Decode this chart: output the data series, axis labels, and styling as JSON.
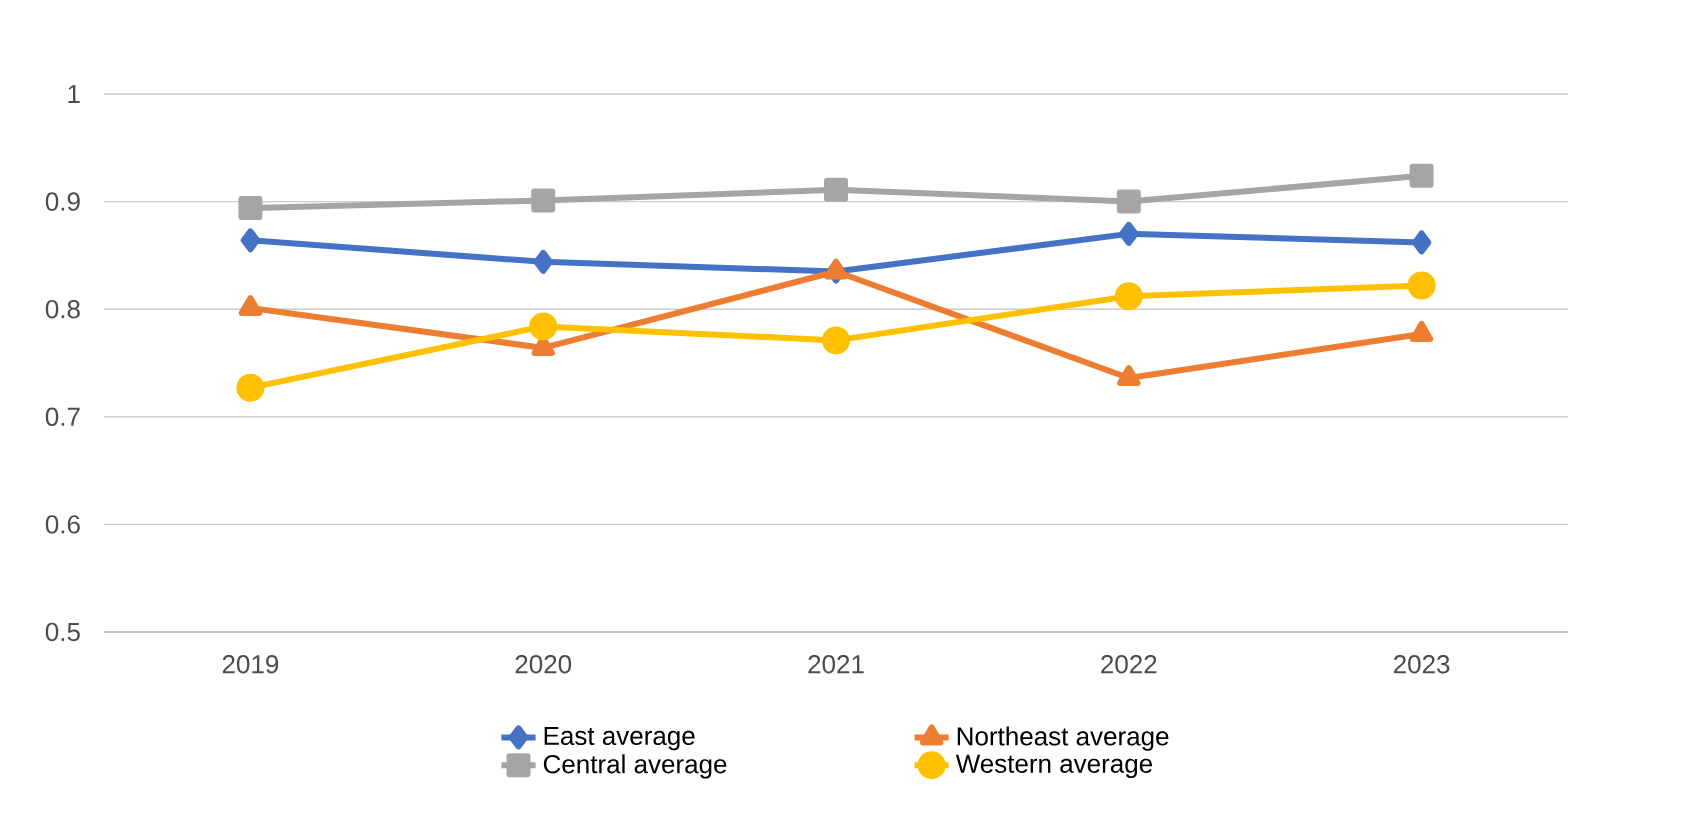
{
  "chart_data": {
    "type": "line",
    "categories": [
      "2019",
      "2020",
      "2021",
      "2022",
      "2023"
    ],
    "series": [
      {
        "name": "East average",
        "color": "#4472c4",
        "marker": "diamond",
        "values": [
          0.864,
          0.844,
          0.835,
          0.87,
          0.862
        ]
      },
      {
        "name": "Northeast average",
        "color": "#ed7d31",
        "marker": "triangle",
        "values": [
          0.801,
          0.764,
          0.835,
          0.736,
          0.777
        ]
      },
      {
        "name": "Central average",
        "color": "#a5a5a5",
        "marker": "square",
        "values": [
          0.894,
          0.901,
          0.911,
          0.9,
          0.924
        ]
      },
      {
        "name": "Western average",
        "color": "#ffc000",
        "marker": "circle",
        "values": [
          0.727,
          0.784,
          0.771,
          0.812,
          0.822
        ]
      }
    ],
    "ylim": [
      0.5,
      1
    ],
    "yticks": [
      0.5,
      0.6,
      0.7,
      0.8,
      0.9,
      1
    ],
    "grid": "y",
    "legend": "bottom",
    "line_style": "solid"
  }
}
